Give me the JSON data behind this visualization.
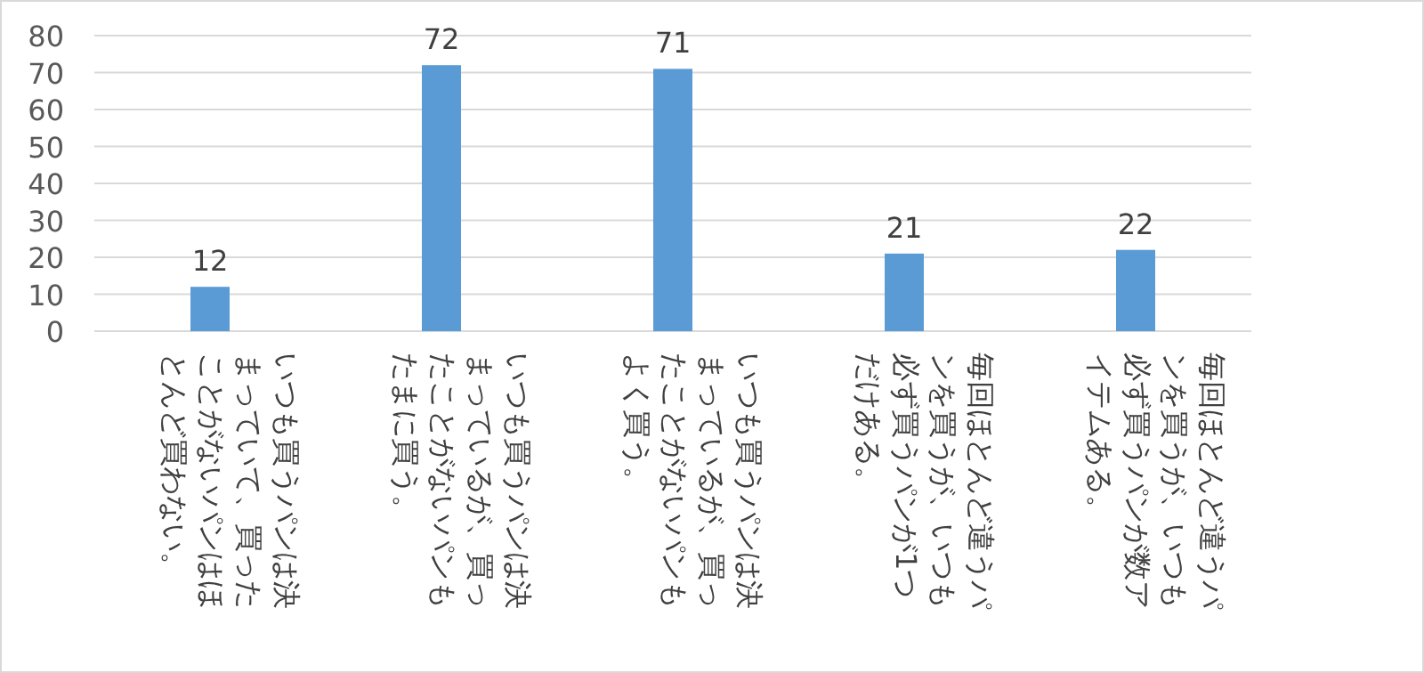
{
  "chart_data": {
    "type": "bar",
    "categories": [
      "いつも買うパンは決まっていて、買ったことがないパンはほとんど買わない。",
      "いつも買うパンは決まっているが、買ったことがないパンもたまに買う。",
      "いつも買うパンは決まっているが、買ったことがないパンもよく買う。",
      "毎回ほとんど違うパンを買うが、いつも必ず買うパンが1つだけある。",
      "毎回ほとんど違うパンを買うが、いつも必ず買うパンが数アイテムある。"
    ],
    "values": [
      12,
      72,
      71,
      21,
      22
    ],
    "color": "#5b9bd5",
    "ylim": [
      0,
      80
    ],
    "yticks": [
      0,
      10,
      20,
      30,
      40,
      50,
      60,
      70,
      80
    ],
    "grid": "y",
    "data_labels": true
  }
}
